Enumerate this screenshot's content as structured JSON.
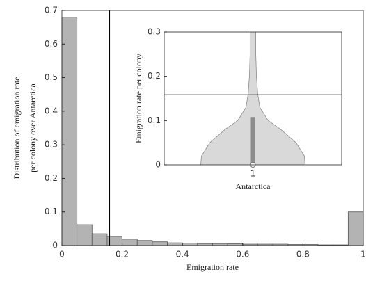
{
  "chart_data": [
    {
      "type": "histogram",
      "xlabel": "Emigration rate",
      "ylabel": [
        "Distribution of emigration rate",
        "per colony over Antarctica"
      ],
      "bins": [
        0,
        0.05,
        0.1,
        0.15,
        0.2,
        0.25,
        0.3,
        0.35,
        0.4,
        0.45,
        0.5,
        0.55,
        0.6,
        0.65,
        0.7,
        0.75,
        0.8,
        0.85,
        0.9,
        0.95,
        1
      ],
      "values": [
        0.68,
        0.062,
        0.035,
        0.027,
        0.019,
        0.015,
        0.011,
        0.008,
        0.007,
        0.006,
        0.006,
        0.005,
        0.004,
        0.004,
        0.004,
        0.003,
        0.003,
        0.002,
        0.002,
        0.1
      ],
      "color": "#b3b3b3",
      "threshold": 0.158,
      "xlim": [
        0,
        1
      ],
      "xticks": [
        0,
        0.2,
        0.4,
        0.6,
        0.8,
        1
      ],
      "ylim": [
        0,
        0.7
      ],
      "yticks": [
        0,
        0.1,
        0.2,
        0.3,
        0.4,
        0.5,
        0.6,
        0.7
      ]
    },
    {
      "type": "violin",
      "xlabel": "Antarctica",
      "ylabel": "Emigration rate per colony",
      "categories": [
        "1"
      ],
      "violin": {
        "y": [
          0,
          0.02,
          0.05,
          0.08,
          0.1,
          0.13,
          0.16,
          0.2,
          0.25,
          0.3
        ],
        "width": [
          0.294,
          0.29,
          0.243,
          0.157,
          0.086,
          0.039,
          0.027,
          0.02,
          0.016,
          0.016
        ]
      },
      "box": {
        "q1": 0,
        "q3": 0.108,
        "median": 0
      },
      "color": "#d9d9d9",
      "threshold": 0.158,
      "xlim": [
        0.5,
        1.5
      ],
      "ylim": [
        0,
        0.3
      ],
      "yticks": [
        0,
        0.1,
        0.2,
        0.3
      ]
    }
  ]
}
